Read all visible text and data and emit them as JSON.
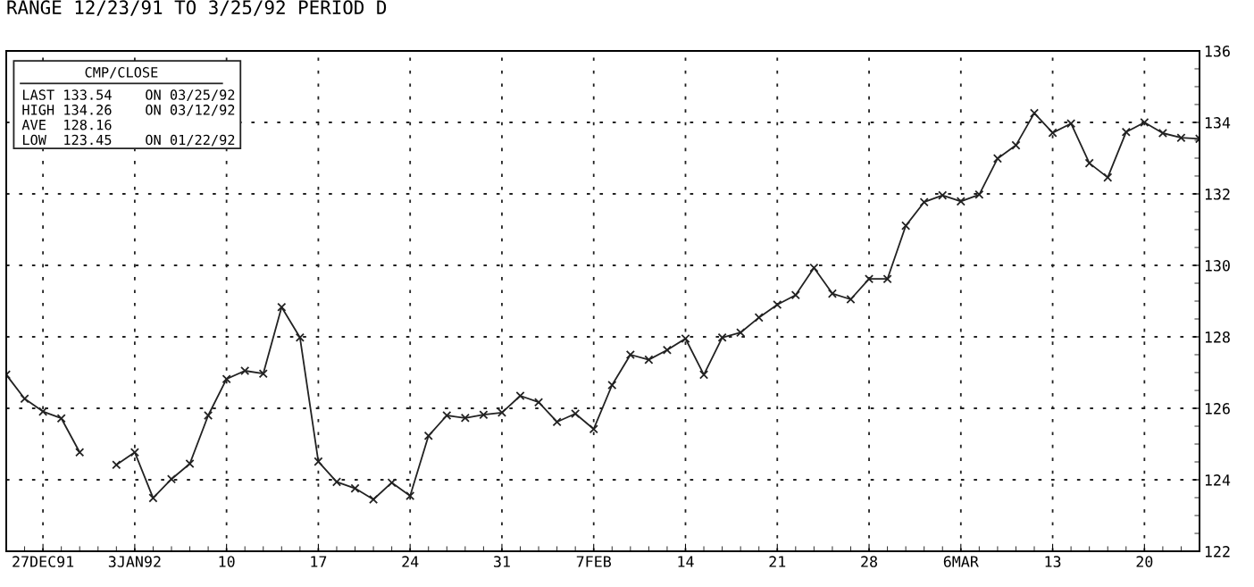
{
  "chart_data": {
    "type": "line",
    "title": "RANGE 12/23/91 TO 3/25/92 PERIOD D",
    "annotations": [
      "CMP/CLOSE",
      "LAST 133.54    ON 03/25/92",
      "HIGH 134.26    ON 03/12/92",
      "AVE  128.16",
      "LOW  123.45    ON 01/22/92"
    ],
    "categories": [
      null,
      null,
      "27DEC91",
      null,
      null,
      null,
      null,
      "3JAN92",
      null,
      null,
      null,
      null,
      "10",
      null,
      null,
      null,
      null,
      "17",
      null,
      null,
      null,
      null,
      "24",
      null,
      null,
      null,
      null,
      "31",
      null,
      null,
      null,
      null,
      "7FEB",
      null,
      null,
      null,
      null,
      "14",
      null,
      null,
      null,
      null,
      "21",
      null,
      null,
      null,
      null,
      "28",
      null,
      null,
      null,
      null,
      "6MAR",
      null,
      null,
      null,
      null,
      "13",
      null,
      null,
      null,
      null,
      "20",
      null,
      null,
      null
    ],
    "series": [
      {
        "color": "#222222",
        "values": [
          126.94,
          126.27,
          125.91,
          125.72,
          124.77,
          null,
          124.42,
          124.77,
          123.49,
          124.02,
          124.45,
          125.8,
          126.82,
          127.05,
          126.97,
          128.83,
          127.98,
          124.51,
          123.94,
          123.76,
          123.45,
          123.92,
          123.55,
          125.23,
          125.8,
          125.73,
          125.82,
          125.88,
          126.35,
          126.17,
          125.62,
          125.85,
          125.42,
          126.65,
          127.5,
          127.36,
          127.63,
          127.95,
          126.94,
          127.98,
          128.12,
          128.54,
          128.9,
          129.17,
          129.93,
          129.21,
          129.05,
          129.62,
          129.62,
          131.11,
          131.77,
          131.96,
          131.79,
          131.98,
          132.99,
          133.36,
          134.26,
          133.71,
          133.97,
          132.86,
          132.46,
          133.73,
          134.0,
          133.7,
          133.57,
          133.54
        ]
      }
    ],
    "ylim": [
      122,
      136
    ],
    "yticks": [
      122,
      124,
      126,
      128,
      130,
      132,
      134,
      136
    ],
    "grid": true,
    "marker": "cross",
    "line_style": "solid",
    "legend": false
  }
}
